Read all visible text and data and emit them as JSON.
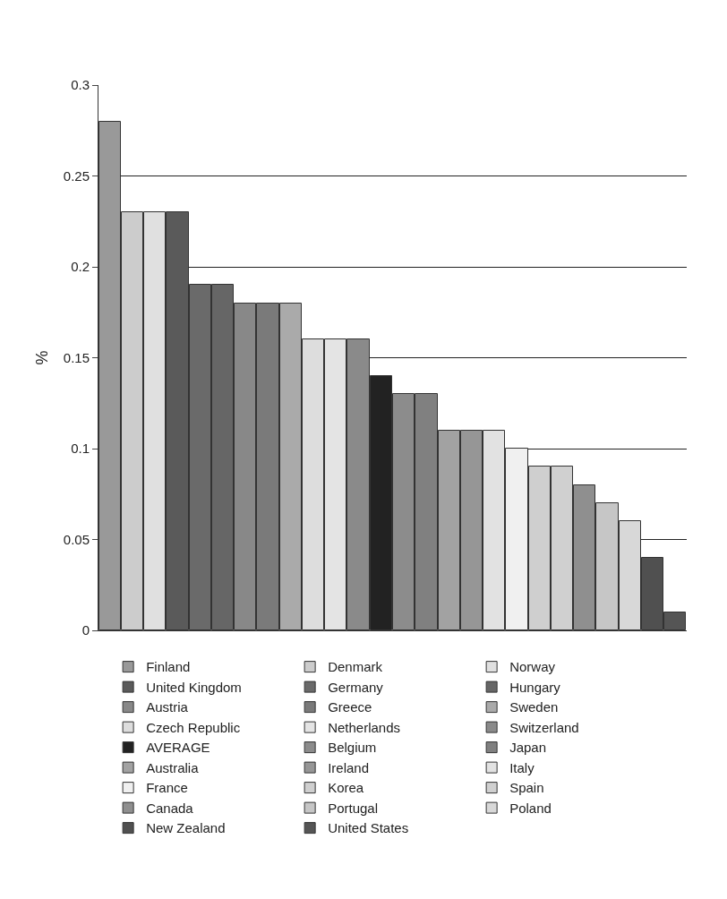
{
  "chart_data": {
    "type": "bar",
    "ylabel": "%",
    "categories": [
      null,
      null,
      null,
      null,
      null,
      null,
      null,
      null,
      null,
      null,
      null,
      null,
      null,
      null,
      null,
      null,
      null,
      null,
      null,
      null,
      null,
      null,
      null,
      null,
      null,
      null
    ],
    "series": [
      {
        "name": "Finland",
        "color": "#999999",
        "values": [
          0.28,
          null,
          null,
          null,
          null,
          null,
          null,
          null,
          null,
          null,
          null,
          null,
          null,
          null,
          null,
          null,
          null,
          null,
          null,
          null,
          null,
          null,
          null,
          null,
          null,
          null
        ]
      },
      {
        "name": "Denmark",
        "color": "#cccccc",
        "values": [
          null,
          0.23,
          null,
          null,
          null,
          null,
          null,
          null,
          null,
          null,
          null,
          null,
          null,
          null,
          null,
          null,
          null,
          null,
          null,
          null,
          null,
          null,
          null,
          null,
          null,
          null
        ]
      },
      {
        "name": "Norway",
        "color": "#e0e0e0",
        "values": [
          null,
          null,
          0.23,
          null,
          null,
          null,
          null,
          null,
          null,
          null,
          null,
          null,
          null,
          null,
          null,
          null,
          null,
          null,
          null,
          null,
          null,
          null,
          null,
          null,
          null,
          null
        ]
      },
      {
        "name": "United Kingdom",
        "color": "#5a5a5a",
        "values": [
          null,
          null,
          null,
          0.23,
          null,
          null,
          null,
          null,
          null,
          null,
          null,
          null,
          null,
          null,
          null,
          null,
          null,
          null,
          null,
          null,
          null,
          null,
          null,
          null,
          null,
          null
        ]
      },
      {
        "name": "Germany",
        "color": "#6a6a6a",
        "values": [
          null,
          null,
          null,
          null,
          0.19,
          null,
          null,
          null,
          null,
          null,
          null,
          null,
          null,
          null,
          null,
          null,
          null,
          null,
          null,
          null,
          null,
          null,
          null,
          null,
          null,
          null
        ]
      },
      {
        "name": "Hungary",
        "color": "#666666",
        "values": [
          null,
          null,
          null,
          null,
          null,
          0.19,
          null,
          null,
          null,
          null,
          null,
          null,
          null,
          null,
          null,
          null,
          null,
          null,
          null,
          null,
          null,
          null,
          null,
          null,
          null,
          null
        ]
      },
      {
        "name": "Austria",
        "color": "#888888",
        "values": [
          null,
          null,
          null,
          null,
          null,
          null,
          0.18,
          null,
          null,
          null,
          null,
          null,
          null,
          null,
          null,
          null,
          null,
          null,
          null,
          null,
          null,
          null,
          null,
          null,
          null,
          null
        ]
      },
      {
        "name": "Greece",
        "color": "#7a7a7a",
        "values": [
          null,
          null,
          null,
          null,
          null,
          null,
          null,
          0.18,
          null,
          null,
          null,
          null,
          null,
          null,
          null,
          null,
          null,
          null,
          null,
          null,
          null,
          null,
          null,
          null,
          null,
          null
        ]
      },
      {
        "name": "Sweden",
        "color": "#aaaaaa",
        "values": [
          null,
          null,
          null,
          null,
          null,
          null,
          null,
          null,
          0.18,
          null,
          null,
          null,
          null,
          null,
          null,
          null,
          null,
          null,
          null,
          null,
          null,
          null,
          null,
          null,
          null,
          null
        ]
      },
      {
        "name": "Czech Republic",
        "color": "#dddddd",
        "values": [
          null,
          null,
          null,
          null,
          null,
          null,
          null,
          null,
          null,
          0.16,
          null,
          null,
          null,
          null,
          null,
          null,
          null,
          null,
          null,
          null,
          null,
          null,
          null,
          null,
          null,
          null
        ]
      },
      {
        "name": "Netherlands",
        "color": "#e4e4e4",
        "values": [
          null,
          null,
          null,
          null,
          null,
          null,
          null,
          null,
          null,
          null,
          0.16,
          null,
          null,
          null,
          null,
          null,
          null,
          null,
          null,
          null,
          null,
          null,
          null,
          null,
          null,
          null
        ]
      },
      {
        "name": "Switzerland",
        "color": "#8a8a8a",
        "values": [
          null,
          null,
          null,
          null,
          null,
          null,
          null,
          null,
          null,
          null,
          null,
          0.16,
          null,
          null,
          null,
          null,
          null,
          null,
          null,
          null,
          null,
          null,
          null,
          null,
          null,
          null
        ]
      },
      {
        "name": "AVERAGE",
        "color": "#222222",
        "values": [
          null,
          null,
          null,
          null,
          null,
          null,
          null,
          null,
          null,
          null,
          null,
          null,
          0.14,
          null,
          null,
          null,
          null,
          null,
          null,
          null,
          null,
          null,
          null,
          null,
          null,
          null
        ]
      },
      {
        "name": "Belgium",
        "color": "#8c8c8c",
        "values": [
          null,
          null,
          null,
          null,
          null,
          null,
          null,
          null,
          null,
          null,
          null,
          null,
          null,
          0.13,
          null,
          null,
          null,
          null,
          null,
          null,
          null,
          null,
          null,
          null,
          null,
          null
        ]
      },
      {
        "name": "Japan",
        "color": "#808080",
        "values": [
          null,
          null,
          null,
          null,
          null,
          null,
          null,
          null,
          null,
          null,
          null,
          null,
          null,
          null,
          0.13,
          null,
          null,
          null,
          null,
          null,
          null,
          null,
          null,
          null,
          null,
          null
        ]
      },
      {
        "name": "Australia",
        "color": "#a2a2a2",
        "values": [
          null,
          null,
          null,
          null,
          null,
          null,
          null,
          null,
          null,
          null,
          null,
          null,
          null,
          null,
          null,
          0.11,
          null,
          null,
          null,
          null,
          null,
          null,
          null,
          null,
          null,
          null
        ]
      },
      {
        "name": "Ireland",
        "color": "#969696",
        "values": [
          null,
          null,
          null,
          null,
          null,
          null,
          null,
          null,
          null,
          null,
          null,
          null,
          null,
          null,
          null,
          null,
          0.11,
          null,
          null,
          null,
          null,
          null,
          null,
          null,
          null,
          null
        ]
      },
      {
        "name": "Italy",
        "color": "#e2e2e2",
        "values": [
          null,
          null,
          null,
          null,
          null,
          null,
          null,
          null,
          null,
          null,
          null,
          null,
          null,
          null,
          null,
          null,
          null,
          0.11,
          null,
          null,
          null,
          null,
          null,
          null,
          null,
          null
        ]
      },
      {
        "name": "France",
        "color": "#f0f0f0",
        "values": [
          null,
          null,
          null,
          null,
          null,
          null,
          null,
          null,
          null,
          null,
          null,
          null,
          null,
          null,
          null,
          null,
          null,
          null,
          0.1,
          null,
          null,
          null,
          null,
          null,
          null,
          null
        ]
      },
      {
        "name": "Korea",
        "color": "#cfcfcf",
        "values": [
          null,
          null,
          null,
          null,
          null,
          null,
          null,
          null,
          null,
          null,
          null,
          null,
          null,
          null,
          null,
          null,
          null,
          null,
          null,
          0.09,
          null,
          null,
          null,
          null,
          null,
          null
        ]
      },
      {
        "name": "Spain",
        "color": "#d0d0d0",
        "values": [
          null,
          null,
          null,
          null,
          null,
          null,
          null,
          null,
          null,
          null,
          null,
          null,
          null,
          null,
          null,
          null,
          null,
          null,
          null,
          null,
          0.09,
          null,
          null,
          null,
          null,
          null
        ]
      },
      {
        "name": "Canada",
        "color": "#8f8f8f",
        "values": [
          null,
          null,
          null,
          null,
          null,
          null,
          null,
          null,
          null,
          null,
          null,
          null,
          null,
          null,
          null,
          null,
          null,
          null,
          null,
          null,
          null,
          0.08,
          null,
          null,
          null,
          null
        ]
      },
      {
        "name": "Portugal",
        "color": "#c6c6c6",
        "values": [
          null,
          null,
          null,
          null,
          null,
          null,
          null,
          null,
          null,
          null,
          null,
          null,
          null,
          null,
          null,
          null,
          null,
          null,
          null,
          null,
          null,
          null,
          0.07,
          null,
          null,
          null
        ]
      },
      {
        "name": "Poland",
        "color": "#d8d8d8",
        "values": [
          null,
          null,
          null,
          null,
          null,
          null,
          null,
          null,
          null,
          null,
          null,
          null,
          null,
          null,
          null,
          null,
          null,
          null,
          null,
          null,
          null,
          null,
          null,
          0.06,
          null,
          null
        ]
      },
      {
        "name": "New Zealand",
        "color": "#505050",
        "values": [
          null,
          null,
          null,
          null,
          null,
          null,
          null,
          null,
          null,
          null,
          null,
          null,
          null,
          null,
          null,
          null,
          null,
          null,
          null,
          null,
          null,
          null,
          null,
          null,
          0.04,
          null
        ]
      },
      {
        "name": "United States",
        "color": "#555555",
        "values": [
          null,
          null,
          null,
          null,
          null,
          null,
          null,
          null,
          null,
          null,
          null,
          null,
          null,
          null,
          null,
          null,
          null,
          null,
          null,
          null,
          null,
          null,
          null,
          null,
          null,
          0.01
        ]
      }
    ],
    "ylim": [
      0,
      0.3
    ],
    "yticks": [
      0,
      0.05,
      0.1,
      0.15,
      0.2,
      0.25,
      0.3
    ],
    "grid": "y",
    "legend": "bottom"
  }
}
